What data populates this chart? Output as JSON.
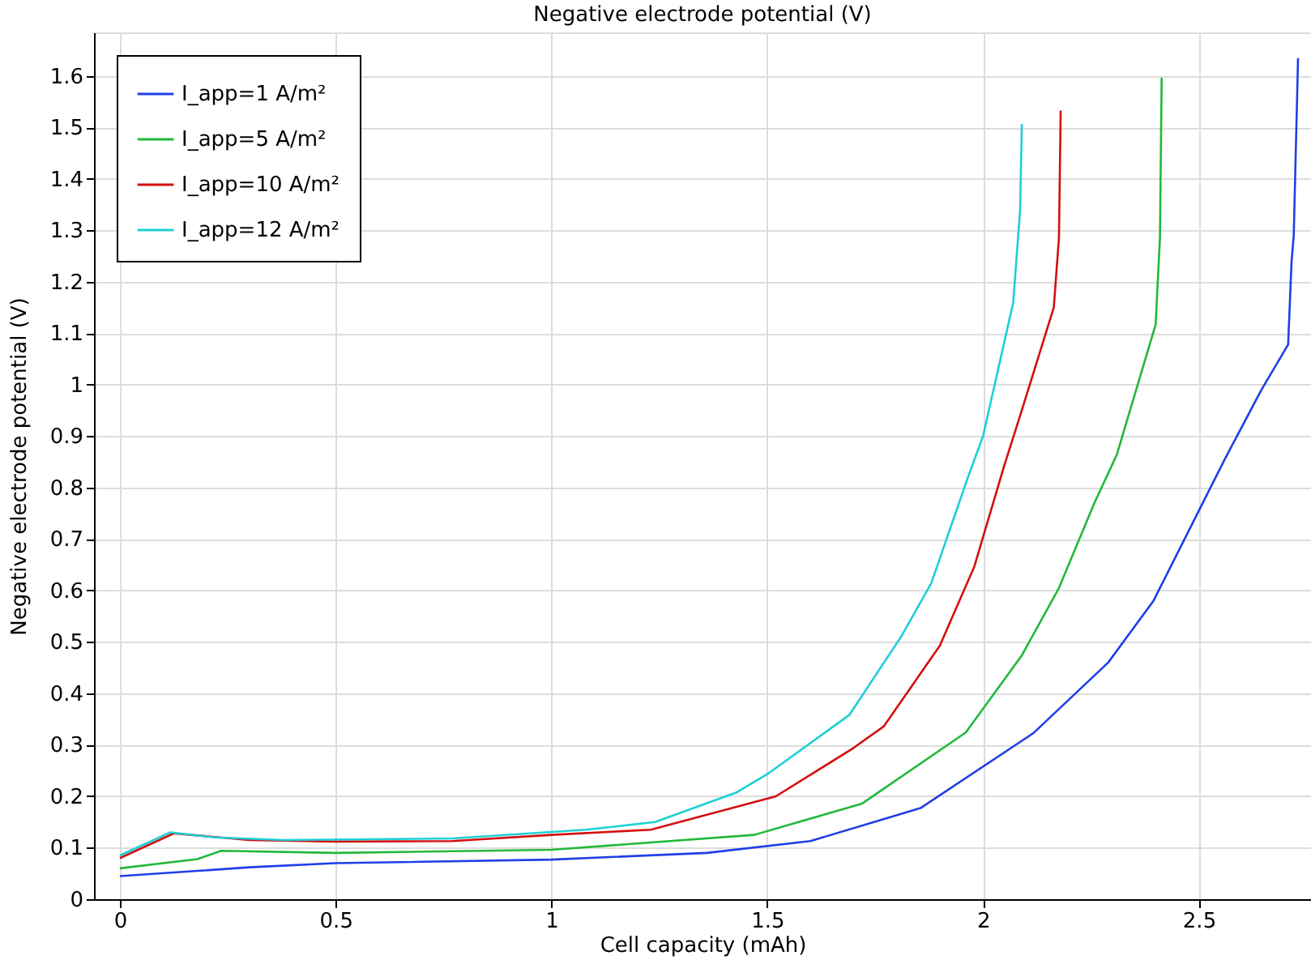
{
  "chart_data": {
    "type": "line",
    "title": "Negative electrode potential (V)",
    "xlabel": "Cell capacity (mAh)",
    "ylabel": "Negative electrode potential (V)",
    "xlim": [
      -0.06,
      2.76
    ],
    "ylim": [
      0,
      1.685
    ],
    "xticks": [
      0,
      0.5,
      1,
      1.5,
      2,
      2.5
    ],
    "yticks": [
      0,
      0.1,
      0.2,
      0.3,
      0.4,
      0.5,
      0.6,
      0.7,
      0.8,
      0.9,
      1,
      1.1,
      1.2,
      1.3,
      1.4,
      1.5,
      1.6
    ],
    "grid": true,
    "legend": "top left",
    "marker": "none",
    "line_style": "solid",
    "series": [
      {
        "name": "I_app=1 A/m²",
        "color": "#1f3fe8",
        "x": [
          0,
          0.18,
          0.3,
          0.5,
          1,
          1.36,
          1.6,
          1.855,
          2.117,
          2.29,
          2.395,
          2.56,
          2.645,
          2.707,
          2.715,
          2.72,
          2.73
        ],
        "values": [
          0.045,
          0.055,
          0.062,
          0.07,
          0.077,
          0.09,
          0.113,
          0.177,
          0.323,
          0.46,
          0.58,
          0.855,
          0.99,
          1.078,
          1.24,
          1.29,
          1.635
        ]
      },
      {
        "name": "I_app=5 A/m²",
        "color": "#22b83a",
        "x": [
          0,
          0.18,
          0.235,
          0.5,
          1,
          1.47,
          1.72,
          1.96,
          2.09,
          2.176,
          2.258,
          2.31,
          2.4,
          2.41,
          2.414
        ],
        "values": [
          0.06,
          0.078,
          0.094,
          0.09,
          0.096,
          0.125,
          0.186,
          0.324,
          0.474,
          0.605,
          0.77,
          0.864,
          1.117,
          1.286,
          1.597
        ]
      },
      {
        "name": "I_app=10 A/m²",
        "color": "#d40f0f",
        "x": [
          0,
          0.125,
          0.3,
          0.5,
          0.77,
          1,
          1.23,
          1.52,
          1.7,
          1.77,
          1.9,
          1.98,
          2.05,
          2.086,
          2.164,
          2.176,
          2.18
        ],
        "values": [
          0.08,
          0.128,
          0.115,
          0.112,
          0.113,
          0.125,
          0.135,
          0.2,
          0.294,
          0.336,
          0.493,
          0.647,
          0.845,
          0.94,
          1.15,
          1.286,
          1.533
        ]
      },
      {
        "name": "I_app=12 A/m²",
        "color": "#1fcfd6",
        "x": [
          0,
          0.117,
          0.22,
          0.38,
          0.77,
          1.08,
          1.24,
          1.43,
          1.5,
          1.69,
          1.81,
          1.88,
          1.965,
          2.0,
          2.07,
          2.086,
          2.09
        ],
        "values": [
          0.085,
          0.13,
          0.12,
          0.115,
          0.118,
          0.135,
          0.15,
          0.208,
          0.243,
          0.358,
          0.51,
          0.614,
          0.82,
          0.9,
          1.16,
          1.34,
          1.507
        ]
      }
    ]
  }
}
